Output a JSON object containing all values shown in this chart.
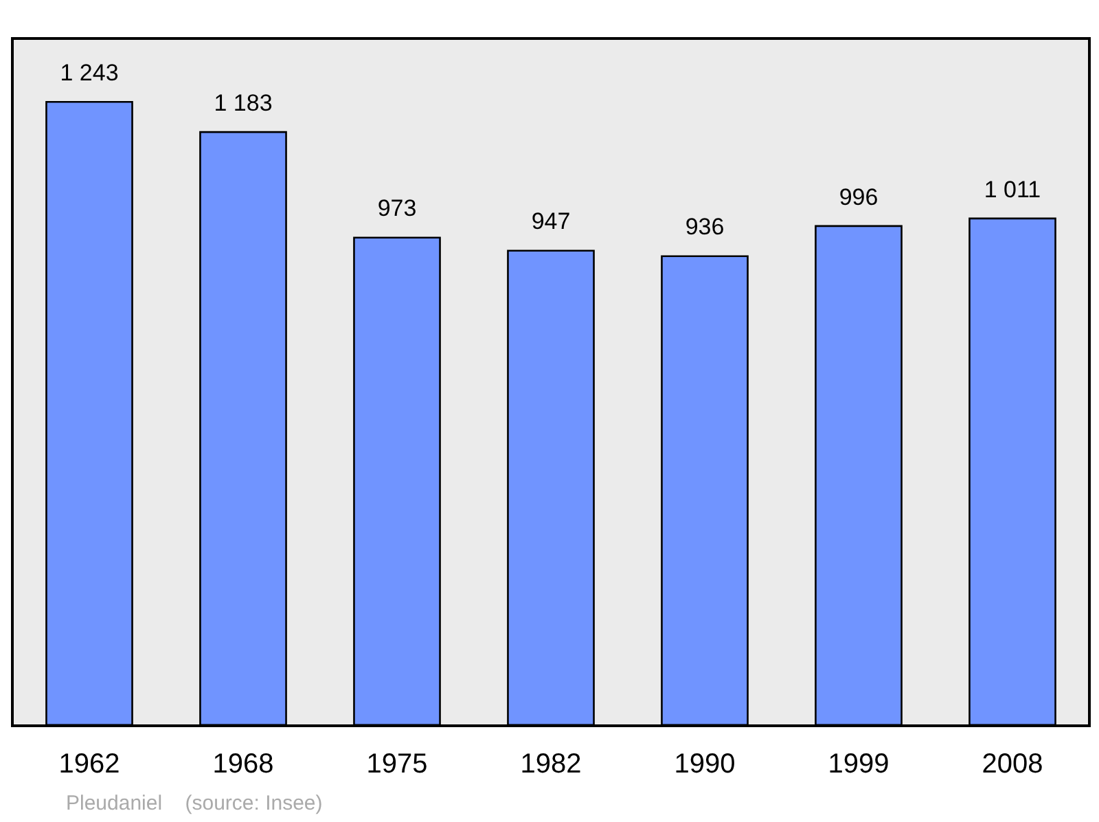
{
  "chart_data": {
    "type": "bar",
    "categories": [
      "1962",
      "1968",
      "1975",
      "1982",
      "1990",
      "1999",
      "2008"
    ],
    "values": [
      1243,
      1183,
      973,
      947,
      936,
      996,
      1011
    ],
    "value_labels": [
      "1 243",
      "1 183",
      "973",
      "947",
      "936",
      "996",
      "1 011"
    ],
    "color": "#7094ff",
    "annotations": [
      "Pleudaniel    (source: Insee)"
    ]
  }
}
